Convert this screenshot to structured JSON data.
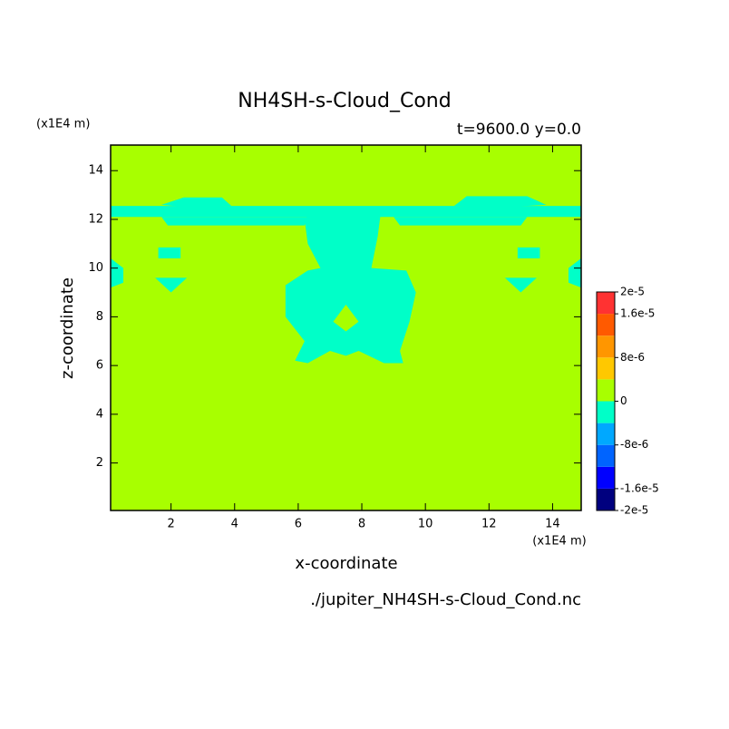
{
  "chart_data": {
    "type": "contour",
    "title": "NH4SH-s-Cloud_Cond",
    "subtitle": "t=9600.0 y=0.0",
    "x_label": "x-coordinate",
    "y_label": "z-coordinate",
    "x_unit": "(x1E4 m)",
    "y_unit": "(x1E4 m)",
    "source": "./jupiter_NH4SH-s-Cloud_Cond.nc",
    "xlim": [
      0.1,
      14.9
    ],
    "ylim": [
      0.05,
      15.05
    ],
    "xticks": [
      2,
      4,
      6,
      8,
      10,
      12,
      14
    ],
    "yticks": [
      2,
      4,
      6,
      8,
      10,
      12,
      14
    ],
    "background_value": 0,
    "regions": [
      {
        "value": -2e-06,
        "points": [
          [
            0.1,
            12.55
          ],
          [
            14.9,
            12.55
          ],
          [
            14.9,
            12.1
          ],
          [
            0.1,
            12.1
          ]
        ]
      },
      {
        "value": -2e-06,
        "points": [
          [
            1.7,
            12.6
          ],
          [
            2.4,
            12.9
          ],
          [
            3.6,
            12.9
          ],
          [
            3.9,
            12.55
          ],
          [
            2.5,
            12.5
          ]
        ]
      },
      {
        "value": -2e-06,
        "points": [
          [
            10.9,
            12.55
          ],
          [
            11.3,
            12.95
          ],
          [
            13.2,
            12.95
          ],
          [
            13.8,
            12.6
          ],
          [
            12.5,
            12.5
          ]
        ]
      },
      {
        "value": -2e-06,
        "points": [
          [
            1.7,
            12.1
          ],
          [
            6.3,
            12.1
          ],
          [
            6.2,
            11.75
          ],
          [
            1.9,
            11.75
          ]
        ]
      },
      {
        "value": -2e-06,
        "points": [
          [
            9.0,
            12.1
          ],
          [
            13.2,
            12.1
          ],
          [
            13.0,
            11.75
          ],
          [
            9.2,
            11.75
          ]
        ]
      },
      {
        "value": -2e-06,
        "points": [
          [
            6.4,
            12.3
          ],
          [
            8.6,
            12.3
          ],
          [
            8.5,
            11.3
          ],
          [
            8.3,
            10.0
          ],
          [
            9.4,
            9.9
          ],
          [
            9.7,
            9.0
          ],
          [
            9.5,
            7.8
          ],
          [
            9.2,
            6.6
          ],
          [
            9.3,
            6.1
          ],
          [
            8.7,
            6.1
          ],
          [
            7.9,
            6.6
          ],
          [
            7.5,
            6.4
          ],
          [
            7.0,
            6.6
          ],
          [
            6.3,
            6.1
          ],
          [
            5.9,
            6.2
          ],
          [
            6.2,
            7.0
          ],
          [
            5.6,
            8.0
          ],
          [
            5.6,
            9.3
          ],
          [
            6.3,
            9.9
          ],
          [
            6.7,
            10.0
          ],
          [
            6.3,
            11.0
          ],
          [
            6.2,
            12.0
          ]
        ]
      },
      {
        "value": 0,
        "points": [
          [
            7.5,
            8.5
          ],
          [
            7.9,
            7.8
          ],
          [
            7.5,
            7.4
          ],
          [
            7.1,
            7.8
          ]
        ]
      },
      {
        "value": -2e-06,
        "points": [
          [
            1.6,
            10.85
          ],
          [
            2.3,
            10.85
          ],
          [
            2.3,
            10.4
          ],
          [
            1.6,
            10.4
          ]
        ]
      },
      {
        "value": -2e-06,
        "points": [
          [
            12.9,
            10.85
          ],
          [
            13.6,
            10.85
          ],
          [
            13.6,
            10.4
          ],
          [
            12.9,
            10.4
          ]
        ]
      },
      {
        "value": -2e-06,
        "points": [
          [
            1.5,
            9.6
          ],
          [
            2.5,
            9.6
          ],
          [
            2.0,
            9.0
          ]
        ]
      },
      {
        "value": -2e-06,
        "points": [
          [
            12.5,
            9.6
          ],
          [
            13.5,
            9.6
          ],
          [
            13.0,
            9.0
          ]
        ]
      },
      {
        "value": -2e-06,
        "points": [
          [
            0.1,
            10.4
          ],
          [
            0.5,
            10.0
          ],
          [
            0.5,
            9.4
          ],
          [
            0.1,
            9.2
          ]
        ]
      },
      {
        "value": -2e-06,
        "points": [
          [
            14.9,
            10.4
          ],
          [
            14.5,
            10.0
          ],
          [
            14.5,
            9.4
          ],
          [
            14.9,
            9.2
          ]
        ]
      }
    ],
    "colorbar": {
      "levels": [
        -2e-05,
        -1.6e-05,
        -1.2e-05,
        -8e-06,
        -4e-06,
        0,
        4e-06,
        8e-06,
        1.2e-05,
        1.6e-05,
        2e-05
      ],
      "colors": [
        "#00007f",
        "#0000ff",
        "#0064ff",
        "#00a8ff",
        "#00ffc8",
        "#a8ff00",
        "#ffc800",
        "#ff9600",
        "#ff5a00",
        "#ff3232"
      ],
      "ticks": [
        {
          "value": 2e-05,
          "label": "2e-5"
        },
        {
          "value": 1.6e-05,
          "label": "1.6e-5"
        },
        {
          "value": 8e-06,
          "label": "8e-6"
        },
        0,
        {
          "value": -8e-06,
          "label": "-8e-6"
        },
        {
          "value": -1.6e-05,
          "label": "-1.6e-5"
        },
        {
          "value": -2e-05,
          "label": "-2e-5"
        }
      ]
    }
  }
}
